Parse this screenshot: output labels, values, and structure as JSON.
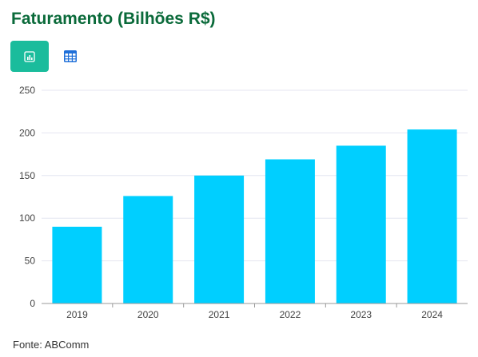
{
  "header": {
    "title": "Faturamento (Bilhões R$)"
  },
  "view_toggle": {
    "chart_icon": "bar-chart-icon",
    "table_icon": "table-grid-icon",
    "active": "chart"
  },
  "colors": {
    "title": "#0a6a3a",
    "accent": "#1abc9c",
    "bar": "#00cfff",
    "table_icon": "#1e6fd9"
  },
  "chart_data": {
    "type": "bar",
    "categories": [
      "2019",
      "2020",
      "2021",
      "2022",
      "2023",
      "2024"
    ],
    "values": [
      90,
      126,
      150,
      169,
      185,
      204
    ],
    "ylim": [
      0,
      250
    ],
    "yticks": [
      0,
      50,
      100,
      150,
      200,
      250
    ],
    "grid": true,
    "legend": "none"
  },
  "footer": {
    "source": "Fonte: ABComm"
  }
}
